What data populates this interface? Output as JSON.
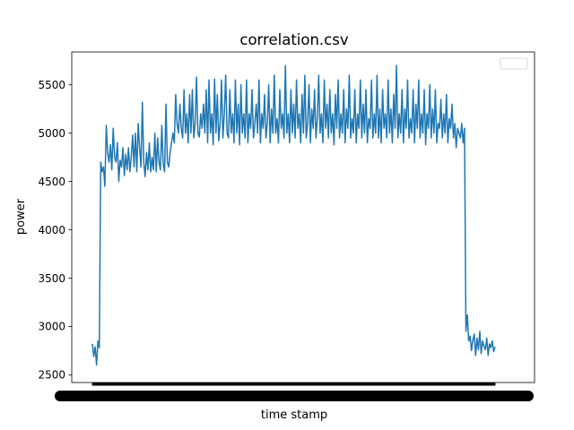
{
  "chart_data": {
    "type": "line",
    "title": "correlation.csv",
    "xlabel": "time stamp",
    "ylabel": "power",
    "ylim": [
      2420,
      5840
    ],
    "yticks": [
      2500,
      3000,
      3500,
      4000,
      4500,
      5000,
      5500
    ],
    "x_tick_count": 640,
    "legend": {
      "position": "upper right",
      "entries": []
    },
    "grid": false,
    "colors": {
      "series": "#1f77b4",
      "axes": "#000000"
    },
    "series": [
      {
        "values": [
          2820,
          2690,
          2790,
          2600,
          2850,
          2780,
          4700,
          4600,
          4650,
          4450,
          5080,
          4800,
          4700,
          4880,
          4620,
          5050,
          4750,
          4700,
          4900,
          4500,
          4720,
          4650,
          4850,
          4560,
          4780,
          4620,
          4850,
          4600,
          4750,
          4980,
          4650,
          5000,
          4600,
          5100,
          4850,
          4650,
          5320,
          4700,
          4550,
          4800,
          4620,
          4900,
          4600,
          4750,
          4620,
          5000,
          4600,
          4950,
          4700,
          4620,
          5080,
          4680,
          4600,
          5300,
          4700,
          4650,
          4800,
          4900,
          5000,
          4900,
          5400,
          5100,
          5000,
          5300,
          5050,
          4950,
          5450,
          5000,
          5200,
          4900,
          5400,
          5000,
          5450,
          4950,
          5100,
          5580,
          5000,
          4960,
          5200,
          5050,
          5300,
          5000,
          5450,
          4900,
          5550,
          5000,
          5200,
          4880,
          5560,
          5000,
          5400,
          4920,
          5100,
          5550,
          4950,
          5200,
          5600,
          5000,
          4950,
          5450,
          5000,
          5200,
          4900,
          5550,
          5000,
          5300,
          4880,
          5500,
          5000,
          5200,
          4950,
          5550,
          4900,
          5200,
          5050,
          5450,
          4950,
          5100,
          5300,
          5000,
          5550,
          4900,
          5200,
          5050,
          5400,
          4950,
          5100,
          5500,
          4900,
          5250,
          5000,
          5600,
          5000,
          5150,
          4900,
          5450,
          5050,
          5200,
          4950,
          5700,
          5000,
          5200,
          4900,
          5450,
          5000,
          5300,
          4950,
          5550,
          5050,
          5200,
          4900,
          5400,
          5000,
          5600,
          4950,
          5100,
          5500,
          4900,
          5250,
          5050,
          5450,
          4950,
          5150,
          5600,
          5000,
          5200,
          4900,
          5550,
          5050,
          5300,
          4950,
          5450,
          5000,
          5200,
          4880,
          5400,
          5050,
          5550,
          4950,
          5200,
          5000,
          5450,
          4900,
          5250,
          5050,
          5600,
          4950,
          5150,
          5000,
          5450,
          4900,
          5200,
          5050,
          5550,
          4950,
          5300,
          5000,
          5450,
          4900,
          5150,
          5050,
          5550,
          4950,
          5200,
          5000,
          5600,
          4950,
          5250,
          4900,
          5450,
          5050,
          5200,
          4950,
          5550,
          5000,
          5250,
          4900,
          5400,
          5050,
          5700,
          4950,
          5200,
          5000,
          5450,
          4900,
          5250,
          5050,
          5550,
          4950,
          5150,
          5000,
          5450,
          4900,
          5300,
          5050,
          5550,
          4950,
          5200,
          5000,
          5450,
          4880,
          5200,
          5050,
          5500,
          4950,
          5250,
          5000,
          5450,
          4900,
          5100,
          5050,
          5350,
          4950,
          5200,
          5000,
          5400,
          4900,
          5150,
          5050,
          5300,
          4950,
          5100,
          4850,
          5050,
          5000,
          4950,
          5100,
          4900,
          5050,
          2950,
          3120,
          2850,
          2900,
          2750,
          2860,
          2920,
          2700,
          2880,
          2760,
          2950,
          2720,
          2850,
          2800,
          2760,
          2880,
          2700,
          2820,
          2780,
          2850,
          2740,
          2790
        ]
      }
    ]
  }
}
